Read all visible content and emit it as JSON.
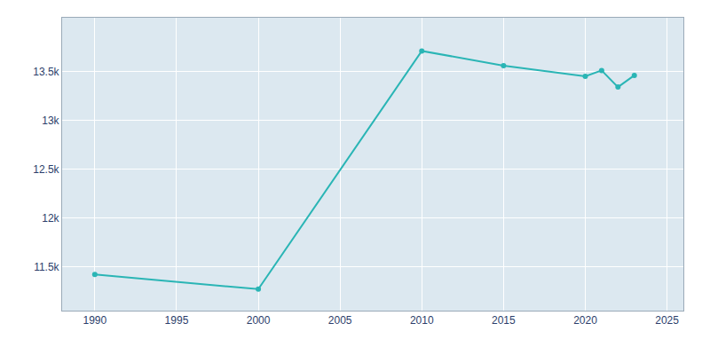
{
  "chart_data": {
    "type": "line",
    "x": [
      1990,
      2000,
      2010,
      2015,
      2020,
      2021,
      2022,
      2023
    ],
    "values": [
      11420,
      11270,
      13710,
      13560,
      13450,
      13510,
      13340,
      13460
    ],
    "color": "#2ab5b5",
    "marker": "circle",
    "xlim": [
      1988,
      2026
    ],
    "ylim": [
      11050,
      14050
    ],
    "xticks": [
      1990,
      1995,
      2000,
      2005,
      2010,
      2015,
      2020,
      2025
    ],
    "yticks": [
      {
        "value": 11500,
        "label": "11.5k"
      },
      {
        "value": 12000,
        "label": "12k"
      },
      {
        "value": 12500,
        "label": "12.5k"
      },
      {
        "value": 13000,
        "label": "13k"
      },
      {
        "value": 13500,
        "label": "13.5k"
      }
    ],
    "grid": true
  }
}
